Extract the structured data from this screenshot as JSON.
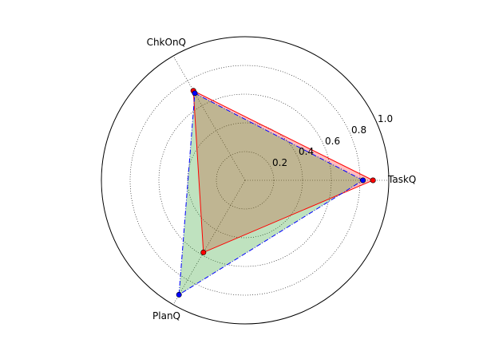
{
  "chart_data": {
    "type": "radar",
    "axes": [
      "TaskQ",
      "ChkOnQ",
      "PlanQ"
    ],
    "axis_angles_deg": [
      0,
      120,
      240
    ],
    "rlim": [
      0,
      1.0
    ],
    "rgrid": [
      0.2,
      0.4,
      0.6,
      0.8,
      1.0
    ],
    "rgrid_labels": [
      "0.2",
      "0.4",
      "0.6",
      "0.8",
      "1.0"
    ],
    "rlabel_angle_deg": 22.5,
    "grid": true,
    "series": [
      {
        "values": [
          0.89,
          0.72,
          0.58
        ],
        "line_color": "#ff0000",
        "fill_color": "#ff0000",
        "fill_opacity": 0.25,
        "marker_color": "#ff0000",
        "line_style": "solid"
      },
      {
        "values": [
          0.82,
          0.7,
          0.92
        ],
        "line_color": "#0000ff",
        "fill_color": "#2ca02c",
        "fill_opacity": 0.3,
        "marker_color": "#0000ff",
        "line_style": "dashdot"
      }
    ]
  }
}
